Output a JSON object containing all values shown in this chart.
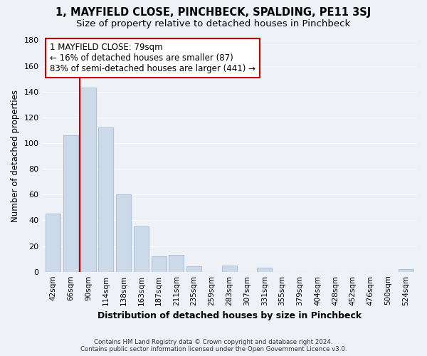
{
  "title": "1, MAYFIELD CLOSE, PINCHBECK, SPALDING, PE11 3SJ",
  "subtitle": "Size of property relative to detached houses in Pinchbeck",
  "xlabel": "Distribution of detached houses by size in Pinchbeck",
  "ylabel": "Number of detached properties",
  "bar_labels": [
    "42sqm",
    "66sqm",
    "90sqm",
    "114sqm",
    "138sqm",
    "163sqm",
    "187sqm",
    "211sqm",
    "235sqm",
    "259sqm",
    "283sqm",
    "307sqm",
    "331sqm",
    "355sqm",
    "379sqm",
    "404sqm",
    "428sqm",
    "452sqm",
    "476sqm",
    "500sqm",
    "524sqm"
  ],
  "bar_values": [
    45,
    106,
    143,
    112,
    60,
    35,
    12,
    13,
    4,
    0,
    5,
    0,
    3,
    0,
    0,
    0,
    0,
    0,
    0,
    0,
    2
  ],
  "bar_color": "#ccd9e8",
  "bar_edge_color": "#b0c4d8",
  "vline_color": "#cc0000",
  "ylim": [
    0,
    180
  ],
  "yticks": [
    0,
    20,
    40,
    60,
    80,
    100,
    120,
    140,
    160,
    180
  ],
  "annotation_title": "1 MAYFIELD CLOSE: 79sqm",
  "annotation_line1": "← 16% of detached houses are smaller (87)",
  "annotation_line2": "83% of semi-detached houses are larger (441) →",
  "annotation_box_color": "#ffffff",
  "annotation_box_edge": "#cc0000",
  "footer_line1": "Contains HM Land Registry data © Crown copyright and database right 2024.",
  "footer_line2": "Contains public sector information licensed under the Open Government Licence v3.0.",
  "background_color": "#eef2f7",
  "grid_color": "#ffffff",
  "title_fontsize": 10.5,
  "subtitle_fontsize": 9.5
}
